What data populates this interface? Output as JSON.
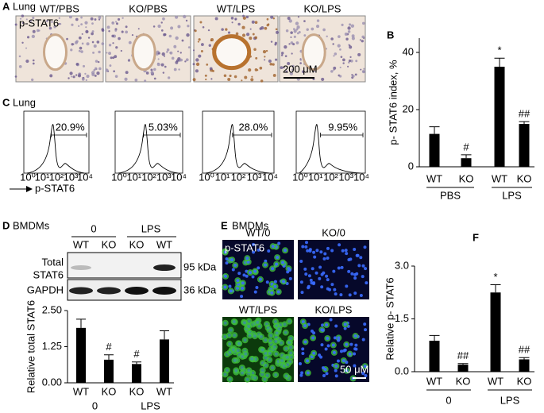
{
  "panel_a": {
    "label": "A",
    "title": "Lung",
    "images": [
      "WT/PBS",
      "KO/PBS",
      "WT/LPS",
      "KO/LPS"
    ],
    "stain": "p-STAT6",
    "scale_bar": "200 μM"
  },
  "panel_c": {
    "label": "C",
    "title": "Lung",
    "gates": [
      "20.9%",
      "5.03%",
      "28.0%",
      "9.95%"
    ],
    "axis_ticks": [
      "10⁰",
      "10¹",
      "10²",
      "10³",
      "10⁴"
    ],
    "x_label": "p-STAT6"
  },
  "panel_d": {
    "label": "D",
    "title": "BMDMs",
    "conditions": [
      "0",
      "LPS"
    ],
    "lanes": [
      "WT",
      "KO",
      "KO",
      "WT"
    ],
    "blots": [
      {
        "lines": [
          "Total",
          "STAT6"
        ],
        "size": "95 kDa"
      },
      {
        "lines": [
          "GAPDH"
        ],
        "size": "36 kDa"
      }
    ]
  },
  "panel_e": {
    "label": "E",
    "title": "BMDMs",
    "images": [
      "WT/0",
      "KO/0",
      "WT/LPS",
      "KO/LPS"
    ],
    "stain": "p-STAT6",
    "scale_bar": "50 μM"
  },
  "chart_data": [
    {
      "type": "bar",
      "label": "B",
      "y_label": "p- STAT6 index, %",
      "categories": [
        "WT",
        "KO",
        "WT",
        "KO"
      ],
      "groups": [
        "PBS",
        "LPS"
      ],
      "values": [
        11.5,
        3,
        35,
        15
      ],
      "errors": [
        2.5,
        1.2,
        3,
        0.8
      ],
      "annotations": [
        null,
        "#",
        "*",
        "##"
      ],
      "color": "#000000",
      "ylim": [
        0,
        45
      ],
      "yticks": [
        0,
        20,
        40
      ]
    },
    {
      "type": "bar",
      "y_label": "Relative total STAT6",
      "categories": [
        "WT",
        "KO",
        "KO",
        "WT"
      ],
      "groups": [
        "0",
        "LPS"
      ],
      "values": [
        1.9,
        0.8,
        0.65,
        1.5
      ],
      "errors": [
        0.3,
        0.17,
        0.07,
        0.3
      ],
      "annotations": [
        null,
        "#",
        "#",
        null
      ],
      "color": "#000000",
      "ylim": [
        0,
        2.5
      ],
      "yticks": [
        {
          "value": 0,
          "label": "0.00"
        },
        {
          "value": 1.25,
          "label": "1.25"
        },
        {
          "value": 2.5,
          "label": "2.50"
        }
      ]
    },
    {
      "type": "bar",
      "label": "F",
      "y_label": "Relative p- STAT6",
      "categories": [
        "WT",
        "KO",
        "WT",
        "KO"
      ],
      "groups": [
        "0",
        "LPS"
      ],
      "values": [
        0.88,
        0.2,
        2.25,
        0.35
      ],
      "errors": [
        0.15,
        0.03,
        0.22,
        0.05
      ],
      "annotations": [
        null,
        "##",
        "*",
        "##"
      ],
      "color": "#000000",
      "ylim": [
        0,
        3
      ],
      "yticks": [
        {
          "value": 0,
          "label": "0.0"
        },
        {
          "value": 1.5,
          "label": "1.5"
        },
        {
          "value": 3,
          "label": "3.0"
        }
      ]
    }
  ]
}
